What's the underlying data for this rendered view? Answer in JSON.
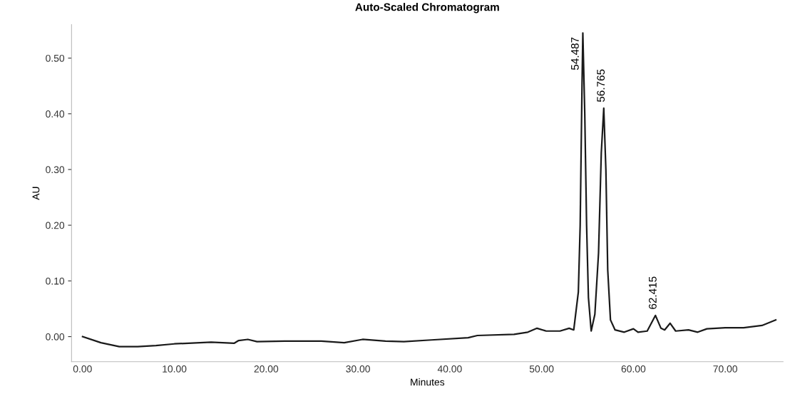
{
  "chart_data": {
    "type": "line",
    "title": "Auto-Scaled Chromatogram",
    "xlabel": "Minutes",
    "ylabel": "AU",
    "x": [
      0,
      2,
      4,
      6,
      8,
      10,
      14,
      16.5,
      17,
      18,
      19,
      22,
      26,
      28.5,
      30.5,
      33,
      35,
      38,
      42,
      43,
      47,
      48.5,
      49.5,
      50.5,
      52,
      53,
      53.5,
      54,
      54.2,
      54.4,
      54.49,
      54.7,
      54.9,
      55.1,
      55.4,
      55.8,
      56.2,
      56.5,
      56.77,
      57.0,
      57.2,
      57.5,
      58,
      59,
      60,
      60.5,
      61.5,
      62.4,
      63.0,
      63.4,
      64.0,
      64.6,
      66,
      67,
      68,
      70,
      72,
      74,
      75.5
    ],
    "series": [
      {
        "color": "#1a1a1a",
        "values": [
          0.0,
          -0.011,
          -0.018,
          -0.018,
          -0.016,
          -0.013,
          -0.01,
          -0.012,
          -0.007,
          -0.005,
          -0.009,
          -0.008,
          -0.008,
          -0.011,
          -0.005,
          -0.008,
          -0.009,
          -0.006,
          -0.002,
          0.002,
          0.004,
          0.008,
          0.015,
          0.01,
          0.01,
          0.015,
          0.012,
          0.08,
          0.2,
          0.45,
          0.545,
          0.4,
          0.2,
          0.07,
          0.01,
          0.04,
          0.15,
          0.33,
          0.41,
          0.3,
          0.12,
          0.03,
          0.012,
          0.008,
          0.014,
          0.008,
          0.01,
          0.038,
          0.015,
          0.012,
          0.024,
          0.01,
          0.012,
          0.008,
          0.014,
          0.016,
          0.016,
          0.02,
          0.03
        ]
      }
    ],
    "annotations": [
      {
        "text": "54.487",
        "x": 54.487,
        "y": 0.545
      },
      {
        "text": "56.765",
        "x": 56.765,
        "y": 0.41
      },
      {
        "text": "62.415",
        "x": 62.415,
        "y": 0.038
      }
    ],
    "xlim": [
      -1.2,
      76.3
    ],
    "ylim": [
      -0.045,
      0.56
    ],
    "xticks": [
      {
        "value": 0,
        "label": "0.00"
      },
      {
        "value": 10,
        "label": "10.00"
      },
      {
        "value": 20,
        "label": "20.00"
      },
      {
        "value": 30,
        "label": "30.00"
      },
      {
        "value": 40,
        "label": "40.00"
      },
      {
        "value": 50,
        "label": "50.00"
      },
      {
        "value": 60,
        "label": "60.00"
      },
      {
        "value": 70,
        "label": "70.00"
      }
    ],
    "yticks": [
      {
        "value": 0,
        "label": "0.00"
      },
      {
        "value": 0.1,
        "label": "0.10"
      },
      {
        "value": 0.2,
        "label": "0.20"
      },
      {
        "value": 0.3,
        "label": "0.30"
      },
      {
        "value": 0.4,
        "label": "0.40"
      },
      {
        "value": 0.5,
        "label": "0.50"
      }
    ],
    "grid": false,
    "legend": false
  }
}
